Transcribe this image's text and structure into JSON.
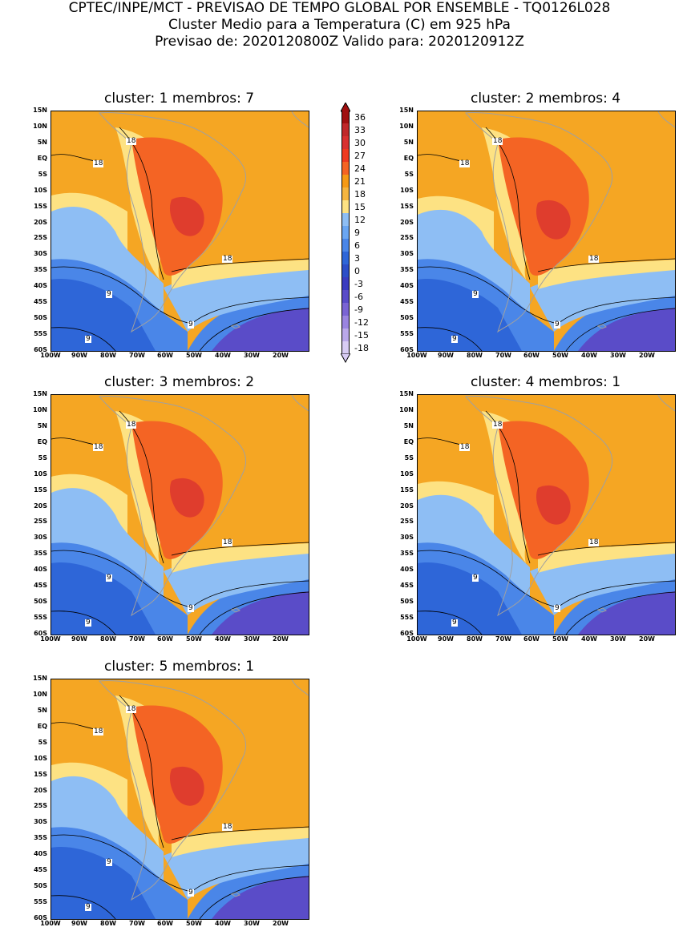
{
  "header": {
    "line1": "CPTEC/INPE/MCT - PREVISAO DE TEMPO GLOBAL POR ENSEMBLE - TQ0126L028",
    "line2": "Cluster Medio para a Temperatura (C) em 925 hPa",
    "line3": "Previsao de: 2020120800Z   Valido para: 2020120912Z"
  },
  "panels": [
    {
      "title": "cluster: 1   membros: 7"
    },
    {
      "title": "cluster: 2   membros: 4"
    },
    {
      "title": "cluster: 3   membros: 2"
    },
    {
      "title": "cluster: 4   membros: 1"
    },
    {
      "title": "cluster: 5   membros: 1"
    }
  ],
  "lat_labels": [
    "15N",
    "10N",
    "5N",
    "EQ",
    "5S",
    "10S",
    "15S",
    "20S",
    "25S",
    "30S",
    "35S",
    "40S",
    "45S",
    "50S",
    "55S",
    "60S"
  ],
  "lon_labels": [
    "100W",
    "90W",
    "80W",
    "70W",
    "60W",
    "50W",
    "40W",
    "30W",
    "20W"
  ],
  "contour_labels": [
    "18",
    "9"
  ],
  "colorbar": {
    "labels": [
      "36",
      "33",
      "30",
      "27",
      "24",
      "21",
      "18",
      "15",
      "12",
      "9",
      "6",
      "3",
      "0",
      "-3",
      "-6",
      "-9",
      "-12",
      "-15",
      "-18"
    ],
    "colors": [
      "#a01010",
      "#c0282a",
      "#d83030",
      "#ee3a20",
      "#f46424",
      "#f59a16",
      "#f5b540",
      "#fde283",
      "#8ebef4",
      "#6aa6f2",
      "#4a86e8",
      "#2e66d8",
      "#2c4ec8",
      "#3a3cc0",
      "#5a4cc8",
      "#7a64d4",
      "#9a84e0",
      "#baa8ea",
      "#d8ccf4"
    ]
  },
  "colors": {
    "deep_orange": "#f46424",
    "red": "#d83030",
    "orange": "#f5a623",
    "yellow": "#fde283",
    "light_blue": "#8ebef4",
    "mid_blue": "#4a86e8",
    "blue": "#2e66d8",
    "purple": "#5a4cc8",
    "coast": "#a0a0a0"
  }
}
